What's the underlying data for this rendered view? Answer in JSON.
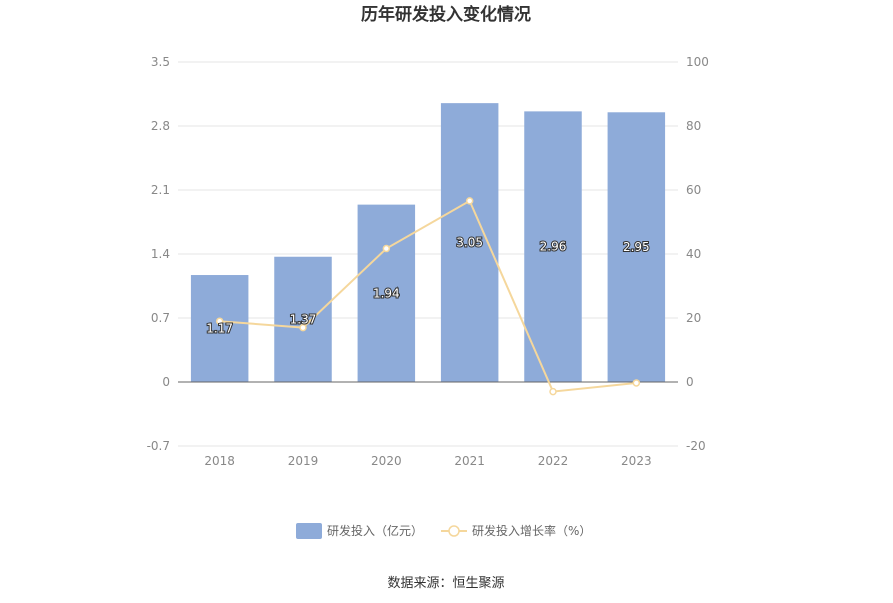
{
  "source_text": "数据来源：恒生聚源",
  "colors": {
    "bar": "#8eabd9",
    "line": "#f5d79c",
    "grid": "#e6e6e6",
    "axis": "#666666"
  },
  "chart_data": {
    "type": "bar",
    "title": "历年研发投入变化情况",
    "categories": [
      "2018",
      "2019",
      "2020",
      "2021",
      "2022",
      "2023"
    ],
    "series": [
      {
        "name": "研发投入（亿元）",
        "type": "bar",
        "axis": "left",
        "values": [
          1.17,
          1.37,
          1.94,
          3.05,
          2.96,
          2.95
        ],
        "labels": [
          "1.17",
          "1.37",
          "1.94",
          "3.05",
          "2.96",
          "2.95"
        ]
      },
      {
        "name": "研发投入增长率（%）",
        "type": "line",
        "axis": "right",
        "values": [
          19.0,
          17.0,
          41.7,
          56.6,
          -3.0,
          -0.3
        ]
      }
    ],
    "left_axis": {
      "min": -0.7,
      "max": 3.5,
      "ticks": [
        "-0.7",
        "0",
        "0.7",
        "1.4",
        "2.1",
        "2.8",
        "3.5"
      ]
    },
    "right_axis": {
      "min": -20,
      "max": 100,
      "ticks": [
        "-20",
        "0",
        "20",
        "40",
        "60",
        "80",
        "100"
      ]
    },
    "grid": true,
    "legend": "bottom"
  }
}
